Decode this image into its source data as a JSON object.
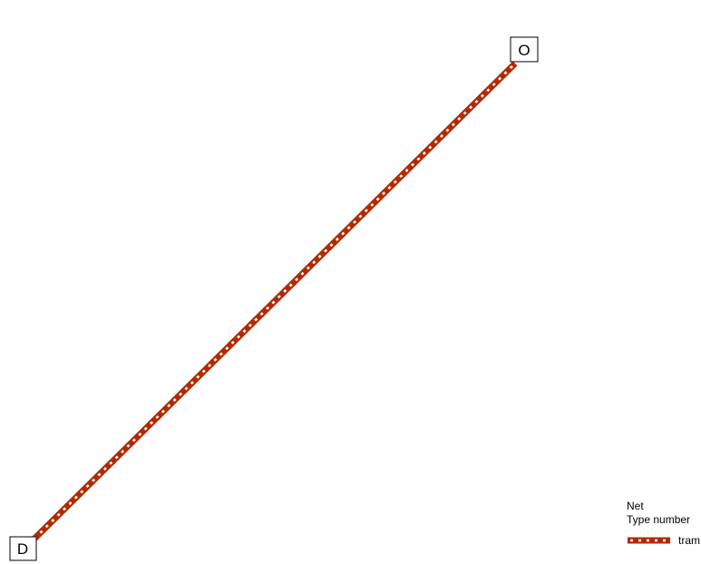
{
  "map": {
    "route": {
      "type": "tram",
      "line_color": "#b22a00",
      "dash_color": "#ffffff"
    },
    "nodes": {
      "origin": {
        "label": "O"
      },
      "destination": {
        "label": "D"
      }
    },
    "legend": {
      "title": "Net",
      "subtitle": "Type number",
      "items": [
        {
          "label": "tram",
          "color": "#b22a00"
        }
      ]
    }
  }
}
